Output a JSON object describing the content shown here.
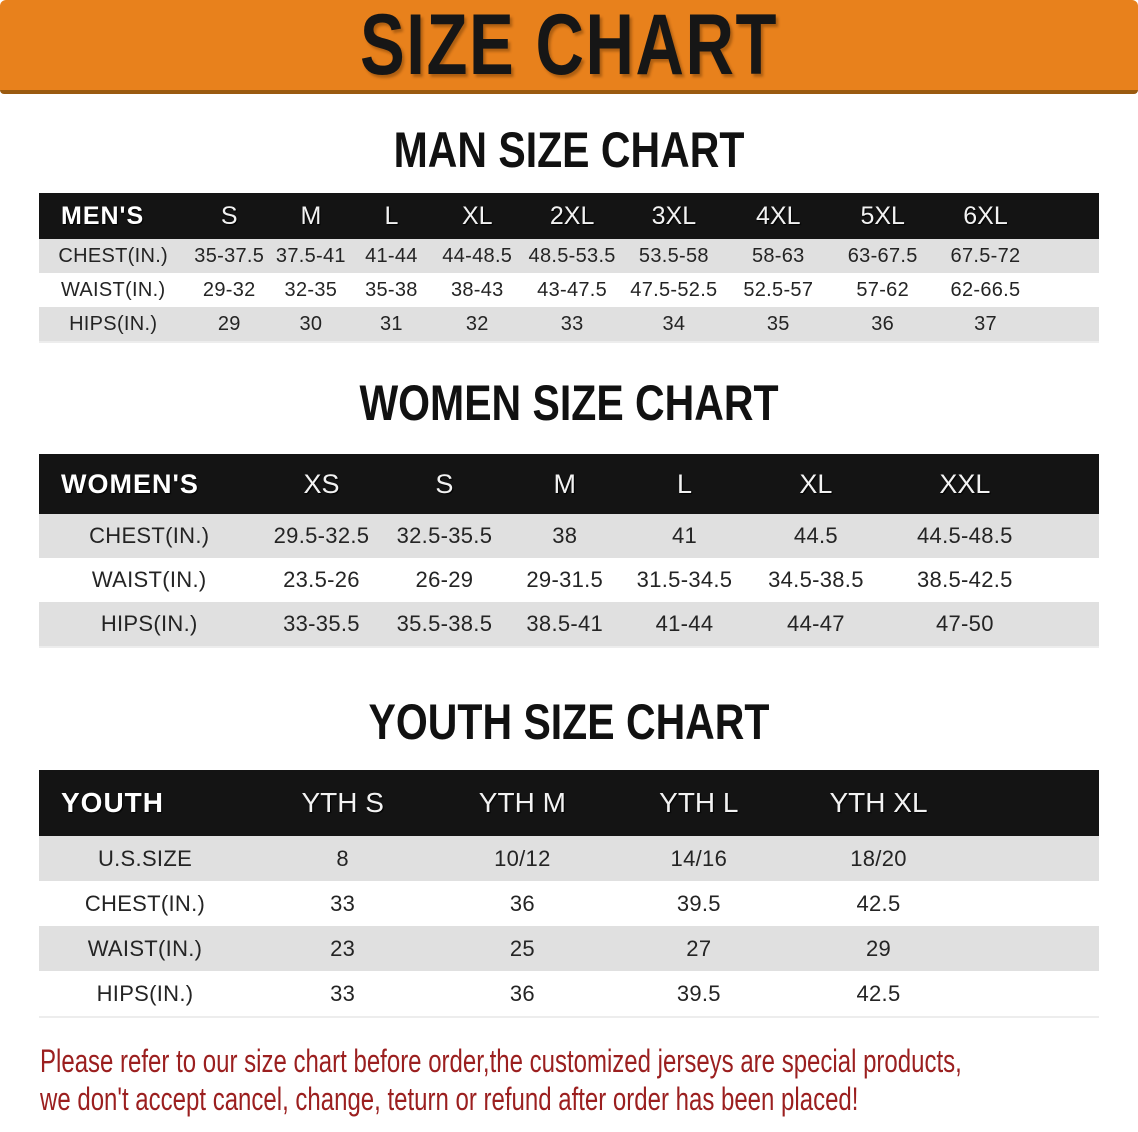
{
  "banner": {
    "title": "SIZE CHART"
  },
  "colors": {
    "banner_orange": "#e8811c",
    "banner_edge": "#9a5a10",
    "header_black": "#141414",
    "stripe_gray": "#e0e0e0",
    "disclaimer_red": "#9b1f1f",
    "text_ink": "#1c1c1c"
  },
  "sections": [
    {
      "id": "men",
      "heading": "MAN SIZE CHART",
      "header_label": "MEN'S",
      "sizes": [
        "S",
        "M",
        "L",
        "XL",
        "2XL",
        "3XL",
        "4XL",
        "5XL",
        "6XL"
      ],
      "rows": [
        {
          "label": "CHEST(IN.)",
          "values": [
            "35-37.5",
            "37.5-41",
            "41-44",
            "44-48.5",
            "48.5-53.5",
            "53.5-58",
            "58-63",
            "63-67.5",
            "67.5-72"
          ]
        },
        {
          "label": "WAIST(IN.)",
          "values": [
            "29-32",
            "32-35",
            "35-38",
            "38-43",
            "43-47.5",
            "47.5-52.5",
            "52.5-57",
            "57-62",
            "62-66.5"
          ]
        },
        {
          "label": "HIPS(IN.)",
          "values": [
            "29",
            "30",
            "31",
            "32",
            "33",
            "34",
            "35",
            "36",
            "37"
          ]
        }
      ]
    },
    {
      "id": "women",
      "heading": "WOMEN SIZE CHART",
      "header_label": "WOMEN'S",
      "sizes": [
        "XS",
        "S",
        "M",
        "L",
        "XL",
        "XXL"
      ],
      "rows": [
        {
          "label": "CHEST(IN.)",
          "values": [
            "29.5-32.5",
            "32.5-35.5",
            "38",
            "41",
            "44.5",
            "44.5-48.5"
          ]
        },
        {
          "label": "WAIST(IN.)",
          "values": [
            "23.5-26",
            "26-29",
            "29-31.5",
            "31.5-34.5",
            "34.5-38.5",
            "38.5-42.5"
          ]
        },
        {
          "label": "HIPS(IN.)",
          "values": [
            "33-35.5",
            "35.5-38.5",
            "38.5-41",
            "41-44",
            "44-47",
            "47-50"
          ]
        }
      ]
    },
    {
      "id": "youth",
      "heading": "YOUTH SIZE CHART",
      "header_label": "YOUTH",
      "sizes": [
        "YTH S",
        "YTH M",
        "YTH L",
        "YTH XL"
      ],
      "rows": [
        {
          "label": "U.S.SIZE",
          "values": [
            "8",
            "10/12",
            "14/16",
            "18/20"
          ]
        },
        {
          "label": "CHEST(IN.)",
          "values": [
            "33",
            "36",
            "39.5",
            "42.5"
          ]
        },
        {
          "label": "WAIST(IN.)",
          "values": [
            "23",
            "25",
            "27",
            "29"
          ]
        },
        {
          "label": "HIPS(IN.)",
          "values": [
            "33",
            "36",
            "39.5",
            "42.5"
          ]
        }
      ]
    }
  ],
  "disclaimer": {
    "line1": "Please refer to our size chart before order,the customized jerseys are special products,",
    "line2": "we don't accept cancel, change, teturn or refund after order has been placed!"
  }
}
